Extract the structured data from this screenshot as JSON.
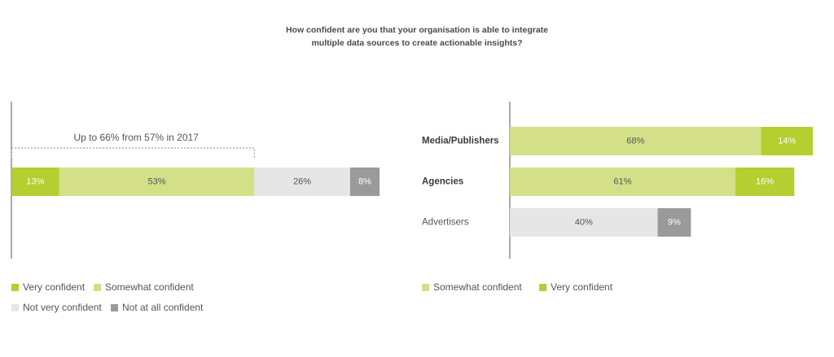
{
  "title": {
    "line1": "How confident are you that your organisation is able to integrate",
    "line2": "multiple data sources to create actionable insights?"
  },
  "colors": {
    "very_confident": "#b4cf2f",
    "somewhat_confident": "#d3e087",
    "not_very_confident": "#e6e6e6",
    "not_at_all_confident": "#9a9a9a",
    "axis": "#555555"
  },
  "chart_data": [
    {
      "type": "bar",
      "orientation": "horizontal",
      "stacked": true,
      "annotation": "Up to 66% from 57% in 2017",
      "segments": [
        {
          "key": "very_confident",
          "name": "Very confident",
          "value": 13,
          "label": "13%"
        },
        {
          "key": "somewhat_confident",
          "name": "Somewhat confident",
          "value": 53,
          "label": "53%"
        },
        {
          "key": "not_very_confident",
          "name": "Not very confident",
          "value": 26,
          "label": "26%"
        },
        {
          "key": "not_at_all_confident",
          "name": "Not at all confident",
          "value": 8,
          "label": "8%"
        }
      ],
      "legend": [
        {
          "key": "very_confident",
          "label": "Very confident"
        },
        {
          "key": "somewhat_confident",
          "label": "Somewhat confident"
        },
        {
          "key": "not_very_confident",
          "label": "Not very confident"
        },
        {
          "key": "not_at_all_confident",
          "label": "Not at all confident"
        }
      ]
    },
    {
      "type": "bar",
      "orientation": "horizontal",
      "stacked": true,
      "categories": [
        "Media/Publishers",
        "Agencies",
        "Advertisers"
      ],
      "category_bold": [
        true,
        true,
        false
      ],
      "series": [
        {
          "name": "Somewhat confident",
          "values": [
            68,
            61,
            null
          ],
          "labels": [
            "68%",
            "61%",
            ""
          ]
        },
        {
          "name": "Very confident",
          "values": [
            14,
            16,
            null
          ],
          "labels": [
            "14%",
            "16%",
            ""
          ]
        },
        {
          "name": "Not very confident",
          "values": [
            null,
            null,
            40
          ],
          "labels": [
            "",
            "",
            "40%"
          ]
        },
        {
          "name": "Not at all confident",
          "values": [
            null,
            null,
            9
          ],
          "labels": [
            "",
            "",
            "9%"
          ]
        }
      ],
      "legend": [
        {
          "key": "somewhat_confident",
          "label": "Somewhat confident"
        },
        {
          "key": "very_confident",
          "label": "Very confident"
        }
      ]
    }
  ]
}
